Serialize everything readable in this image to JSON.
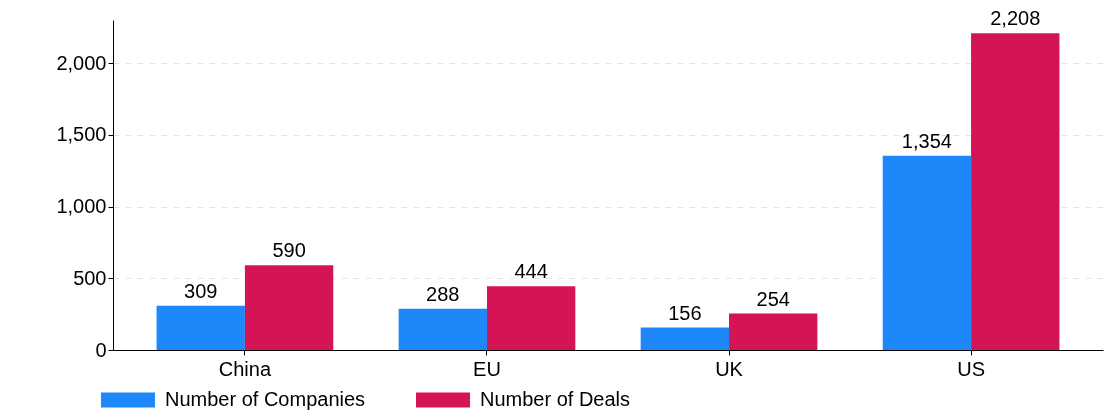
{
  "chart_data": {
    "type": "bar",
    "categories": [
      "China",
      "EU",
      "UK",
      "US"
    ],
    "series": [
      {
        "name": "Number of Companies",
        "color": "#1e88fa",
        "values": [
          309,
          288,
          156,
          1354
        ],
        "value_labels": [
          "309",
          "288",
          "156",
          "1,354"
        ]
      },
      {
        "name": "Number of Deals",
        "color": "#d51457",
        "values": [
          590,
          444,
          254,
          2208
        ],
        "value_labels": [
          "590",
          "444",
          "254",
          "2,208"
        ]
      }
    ],
    "ylim": [
      0,
      2300
    ],
    "yticks": [
      0,
      {
        "value": 500,
        "label": "500"
      },
      {
        "value": 1000,
        "label": "1,000"
      },
      {
        "value": 1500,
        "label": "1,500"
      },
      {
        "value": 2000,
        "label": "2,000"
      }
    ],
    "grid": "y",
    "legend": "bottom"
  }
}
